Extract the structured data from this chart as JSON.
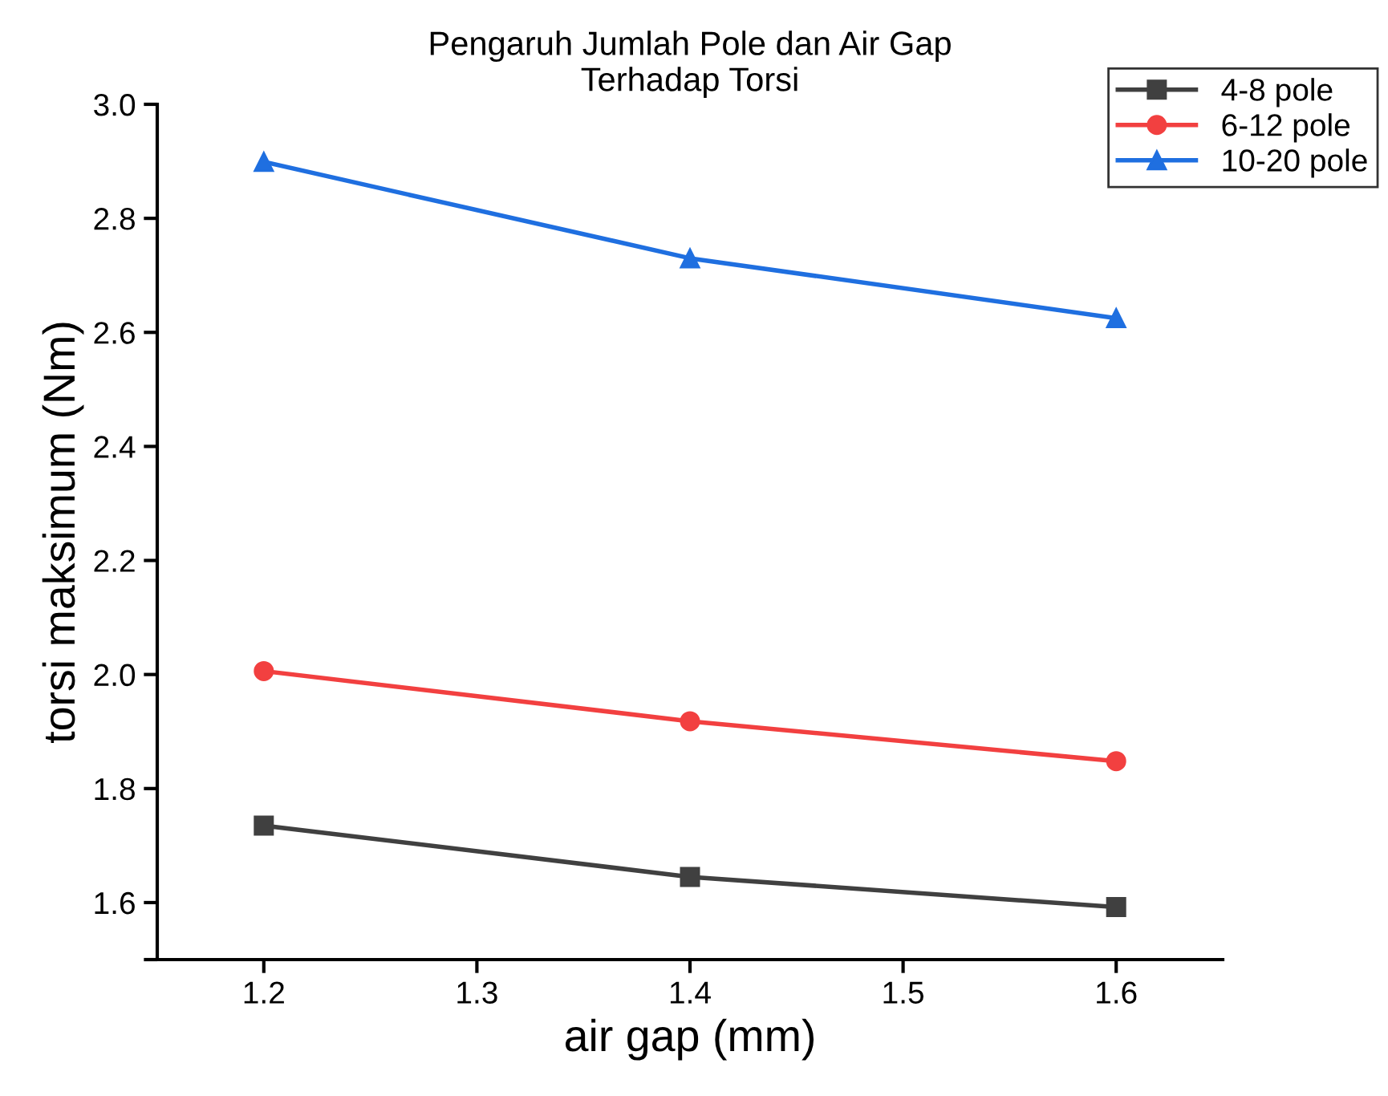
{
  "chart_data": {
    "type": "line",
    "title": "Pengaruh Jumlah Pole dan Air Gap\nTerhadap Torsi",
    "xlabel": "air gap (mm)",
    "ylabel": "torsi maksimum (Nm)",
    "x": [
      1.2,
      1.4,
      1.6
    ],
    "series": [
      {
        "name": "4-8 pole",
        "color": "#404040",
        "marker": "square",
        "values": [
          1.735,
          1.645,
          1.592
        ]
      },
      {
        "name": "6-12 pole",
        "color": "#f24040",
        "marker": "circle",
        "values": [
          2.006,
          1.918,
          1.848
        ]
      },
      {
        "name": "10-20 pole",
        "color": "#1f6fe0",
        "marker": "triangle",
        "values": [
          2.899,
          2.73,
          2.625
        ]
      }
    ],
    "xlim": [
      1.15,
      1.65
    ],
    "xticks": [
      1.2,
      1.3,
      1.4,
      1.5,
      1.6
    ],
    "ylim": [
      1.5,
      3.0
    ],
    "yticks": [
      {
        "value": 1.5,
        "label": null
      },
      1.6,
      1.8,
      {
        "value": 2.0,
        "label": "2.0"
      },
      2.2,
      2.4,
      2.6,
      2.8,
      {
        "value": 3.0,
        "label": "3.0"
      }
    ],
    "grid": false,
    "legend": "top right",
    "line_style": "solid"
  }
}
